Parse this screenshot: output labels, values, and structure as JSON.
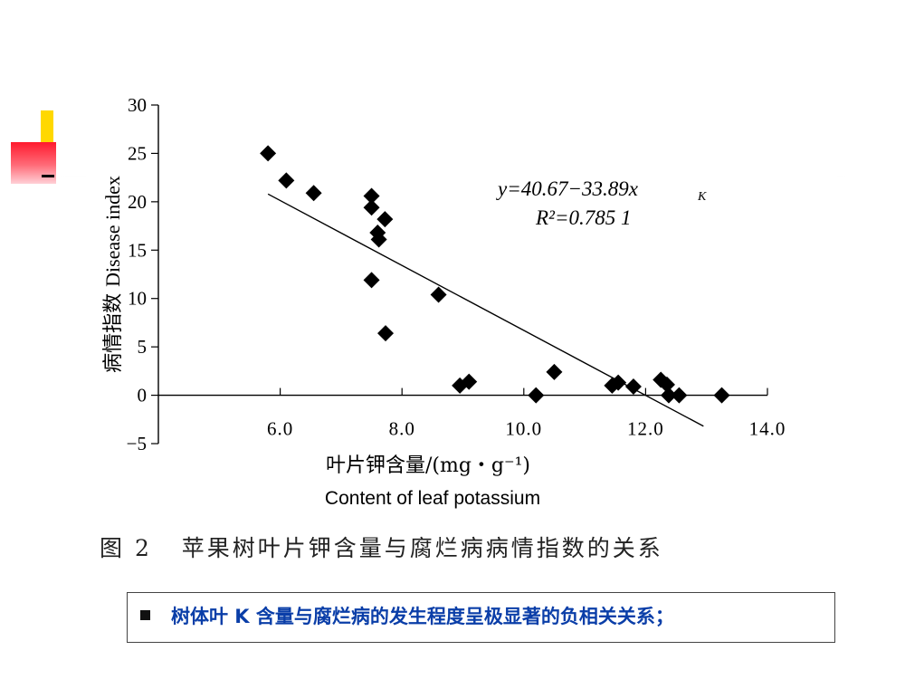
{
  "chart_data": {
    "type": "scatter",
    "ylabel_cn": "病情指数",
    "ylabel_en": "Disease index",
    "xlabel_cn": "叶片钾含量/(mg・g⁻¹)",
    "xlabel_en": "Content of leaf potassium",
    "xlim": [
      4.0,
      14.0
    ],
    "ylim": [
      -5,
      30
    ],
    "xticks": [
      6.0,
      8.0,
      10.0,
      12.0,
      14.0
    ],
    "xtick_labels": [
      "6.0",
      "8.0",
      "10.0",
      "12.0",
      "14.0"
    ],
    "yticks": [
      -5,
      0,
      5,
      10,
      15,
      20,
      25,
      30
    ],
    "ytick_labels": [
      "−5",
      "0",
      "5",
      "10",
      "15",
      "20",
      "25",
      "30"
    ],
    "grid": false,
    "marker": "diamond",
    "marker_color": "#000000",
    "points": [
      {
        "x": 5.8,
        "y": 25.0
      },
      {
        "x": 6.1,
        "y": 22.2
      },
      {
        "x": 6.55,
        "y": 20.9
      },
      {
        "x": 7.5,
        "y": 20.6
      },
      {
        "x": 7.5,
        "y": 19.4
      },
      {
        "x": 7.72,
        "y": 18.2
      },
      {
        "x": 7.6,
        "y": 16.8
      },
      {
        "x": 7.62,
        "y": 16.1
      },
      {
        "x": 7.5,
        "y": 11.9
      },
      {
        "x": 7.73,
        "y": 6.4
      },
      {
        "x": 8.6,
        "y": 10.4
      },
      {
        "x": 8.95,
        "y": 1.0
      },
      {
        "x": 9.1,
        "y": 1.4
      },
      {
        "x": 10.2,
        "y": 0.0
      },
      {
        "x": 10.5,
        "y": 2.4
      },
      {
        "x": 11.45,
        "y": 1.0
      },
      {
        "x": 11.55,
        "y": 1.3
      },
      {
        "x": 11.8,
        "y": 0.9
      },
      {
        "x": 12.25,
        "y": 1.6
      },
      {
        "x": 12.35,
        "y": 1.1
      },
      {
        "x": 12.38,
        "y": 0.0
      },
      {
        "x": 12.55,
        "y": 0.0
      },
      {
        "x": 13.25,
        "y": 0.0
      }
    ],
    "trendline": {
      "intercept": 40.67,
      "slope": -33.89,
      "x_start": 5.8,
      "x_end": 12.95
    },
    "equation_text": "y=40.67−33.89x",
    "equation_subscript": "K",
    "r2_text": "R²=0.785 1"
  },
  "caption": "图 2   苹果树叶片钾含量与腐烂病病情指数的关系",
  "bullet": "树体叶 K 含量与腐烂病的发生程度呈极显著的负相关关系；"
}
